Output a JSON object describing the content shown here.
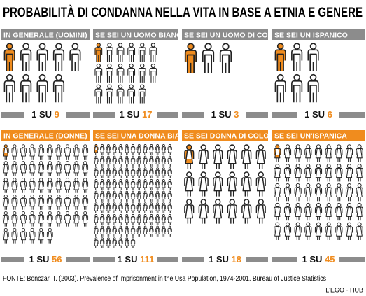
{
  "header": {
    "title": "PROBABILITÀ DI CONDANNA NELLA VITA IN BASE A ETNIA E GENERE"
  },
  "rows": [
    {
      "panels": [
        {
          "label": "IN GENERALE (UOMINI)",
          "prefix": "1 SU",
          "value": 9
        },
        {
          "label": "SE SEI UN UOMO BIANCO",
          "prefix": "1 SU",
          "value": 17
        },
        {
          "label": "SE SEI UN UOMO DI COLORE",
          "prefix": "1 SU",
          "value": 3
        },
        {
          "label": "SE SEI UN ISPANICO",
          "prefix": "1 SU",
          "value": 6
        }
      ]
    },
    {
      "panels": [
        {
          "label": "IN GENERALE (DONNE)",
          "prefix": "1 SU",
          "value": 56
        },
        {
          "label": "SE SEI UNA DONNA BIANCA",
          "prefix": "1 SU",
          "value": 111
        },
        {
          "label": "SE SEI DONNA DI COLORE",
          "prefix": "1 SU",
          "value": 18
        },
        {
          "label": "SE SEI UN'ISPANICA",
          "prefix": "1 SU",
          "value": 45
        }
      ]
    }
  ],
  "footer": {
    "source": "FONTE: Bonczar, T. (2003). Prevalence of Imprisonment in the Usa Population, 1974-2001. Bureau of Justice Statistics",
    "credit": "L'EGO - HUB"
  }
}
